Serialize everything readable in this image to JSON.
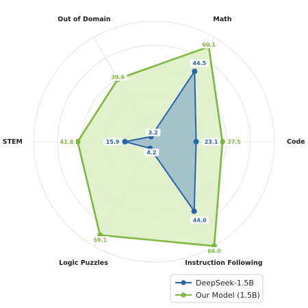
{
  "chart_data": {
    "type": "radar",
    "axes": [
      "Math",
      "Code",
      "Instruction Following",
      "Logic Puzzles",
      "STEM",
      "Out of Domain"
    ],
    "series": [
      {
        "name": "DeepSeek-1.5B",
        "values": [
          44.5,
          23.1,
          44.0,
          4.2,
          15.9,
          3.2
        ],
        "labels": [
          "44.5",
          "23.1",
          "44.0",
          "4.2",
          "15.9",
          "3.2"
        ],
        "color": "#2a63a8",
        "fill": "#8fb3c8"
      },
      {
        "name": "Our Model (1.5B)",
        "values": [
          60.1,
          37.5,
          66.0,
          59.1,
          41.8,
          39.6
        ],
        "labels": [
          "60.1",
          "37.5",
          "66.0",
          "59.1",
          "41.8",
          "39.6"
        ],
        "color": "#7cb83c",
        "fill": "#dcedc4"
      }
    ],
    "grid": true,
    "legend": "bottom-right"
  }
}
